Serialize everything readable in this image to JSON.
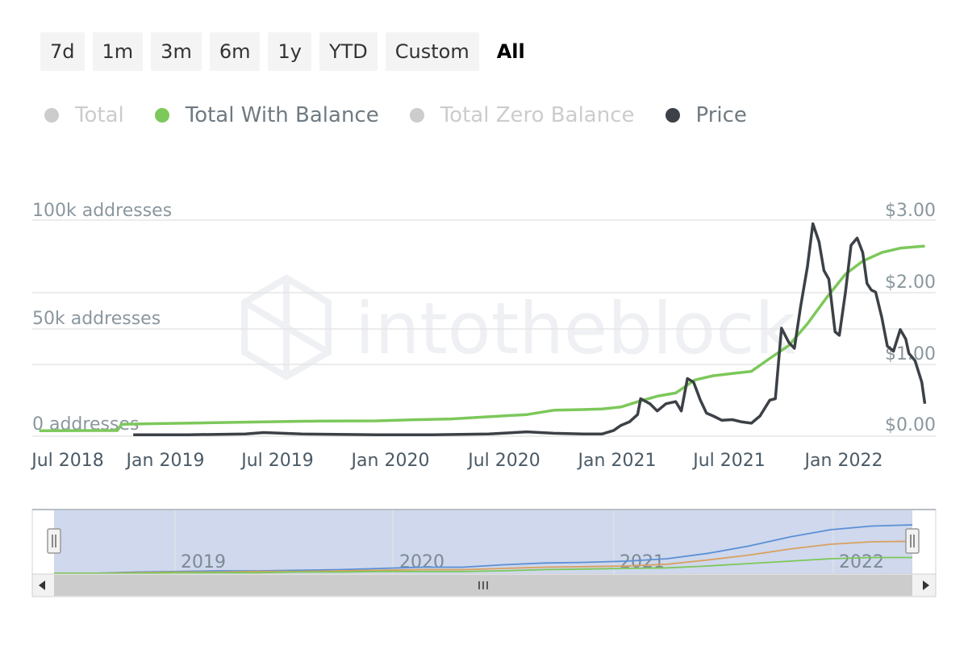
{
  "range_buttons": [
    "7d",
    "1m",
    "3m",
    "6m",
    "1y",
    "YTD",
    "Custom",
    "All"
  ],
  "active_range": "All",
  "legend": [
    {
      "label": "Total",
      "active": false,
      "color": "#cccccc"
    },
    {
      "label": "Total With Balance",
      "active": true,
      "color": "#7cc85a"
    },
    {
      "label": "Total Zero Balance",
      "active": false,
      "color": "#cccccc"
    },
    {
      "label": "Price",
      "active": true,
      "color": "#3c4147"
    }
  ],
  "watermark": "intotheblock",
  "chart_data": {
    "type": "line",
    "x_tick_labels": [
      "Jul 2018",
      "Jan 2019",
      "Jul 2019",
      "Jan 2020",
      "Jul 2020",
      "Jan 2021",
      "Jul 2021",
      "Jan 2022"
    ],
    "y_left_labels": [
      "100k addresses",
      "50k addresses",
      "0 addresses"
    ],
    "y_right_labels": [
      "$3.00",
      "$2.00",
      "$1.00",
      "$0.00"
    ],
    "y_left_range": [
      0,
      100000
    ],
    "y_right_range": [
      0,
      3
    ],
    "series": [
      {
        "name": "Total With Balance",
        "color": "#7cc85a",
        "axis": "left",
        "points": [
          [
            "2018-07-01",
            2500
          ],
          [
            "2018-10-01",
            2600
          ],
          [
            "2018-11-05",
            2600
          ],
          [
            "2018-11-12",
            5500
          ],
          [
            "2019-01-01",
            5800
          ],
          [
            "2019-04-01",
            6200
          ],
          [
            "2019-07-01",
            6600
          ],
          [
            "2019-10-01",
            7000
          ],
          [
            "2020-01-01",
            7100
          ],
          [
            "2020-03-01",
            7600
          ],
          [
            "2020-05-01",
            8000
          ],
          [
            "2020-07-01",
            9000
          ],
          [
            "2020-09-01",
            10000
          ],
          [
            "2020-10-15",
            12000
          ],
          [
            "2020-12-01",
            12300
          ],
          [
            "2021-01-01",
            12600
          ],
          [
            "2021-02-01",
            13500
          ],
          [
            "2021-03-01",
            16000
          ],
          [
            "2021-04-01",
            18500
          ],
          [
            "2021-05-01",
            20000
          ],
          [
            "2021-06-01",
            26000
          ],
          [
            "2021-07-01",
            28000
          ],
          [
            "2021-08-01",
            29000
          ],
          [
            "2021-09-01",
            30000
          ],
          [
            "2021-10-01",
            36000
          ],
          [
            "2021-11-01",
            42000
          ],
          [
            "2021-12-01",
            52000
          ],
          [
            "2022-01-01",
            64000
          ],
          [
            "2022-02-01",
            75000
          ],
          [
            "2022-03-01",
            81000
          ],
          [
            "2022-04-01",
            85000
          ],
          [
            "2022-05-01",
            87000
          ],
          [
            "2022-06-10",
            88000
          ]
        ]
      },
      {
        "name": "Price",
        "color": "#3c4147",
        "axis": "right",
        "points": [
          [
            "2018-12-01",
            0.02
          ],
          [
            "2019-03-01",
            0.02
          ],
          [
            "2019-06-01",
            0.03
          ],
          [
            "2019-07-01",
            0.05
          ],
          [
            "2019-09-01",
            0.03
          ],
          [
            "2020-01-01",
            0.02
          ],
          [
            "2020-04-01",
            0.02
          ],
          [
            "2020-07-01",
            0.03
          ],
          [
            "2020-09-01",
            0.06
          ],
          [
            "2020-10-15",
            0.04
          ],
          [
            "2020-12-01",
            0.03
          ],
          [
            "2021-01-01",
            0.03
          ],
          [
            "2021-01-20",
            0.08
          ],
          [
            "2021-02-01",
            0.15
          ],
          [
            "2021-02-15",
            0.2
          ],
          [
            "2021-02-28",
            0.3
          ],
          [
            "2021-03-05",
            0.52
          ],
          [
            "2021-03-20",
            0.45
          ],
          [
            "2021-04-01",
            0.35
          ],
          [
            "2021-04-15",
            0.45
          ],
          [
            "2021-05-01",
            0.48
          ],
          [
            "2021-05-10",
            0.35
          ],
          [
            "2021-05-20",
            0.8
          ],
          [
            "2021-05-30",
            0.75
          ],
          [
            "2021-06-10",
            0.5
          ],
          [
            "2021-06-20",
            0.32
          ],
          [
            "2021-07-01",
            0.28
          ],
          [
            "2021-07-15",
            0.22
          ],
          [
            "2021-08-01",
            0.23
          ],
          [
            "2021-08-15",
            0.2
          ],
          [
            "2021-09-01",
            0.18
          ],
          [
            "2021-09-15",
            0.28
          ],
          [
            "2021-10-01",
            0.5
          ],
          [
            "2021-10-10",
            0.52
          ],
          [
            "2021-10-20",
            1.5
          ],
          [
            "2021-11-01",
            1.3
          ],
          [
            "2021-11-10",
            1.22
          ],
          [
            "2021-11-20",
            1.8
          ],
          [
            "2021-12-01",
            2.35
          ],
          [
            "2021-12-10",
            2.95
          ],
          [
            "2021-12-20",
            2.7
          ],
          [
            "2021-12-28",
            2.3
          ],
          [
            "2022-01-05",
            2.18
          ],
          [
            "2022-01-15",
            1.45
          ],
          [
            "2022-01-22",
            1.4
          ],
          [
            "2022-02-01",
            2.0
          ],
          [
            "2022-02-10",
            2.65
          ],
          [
            "2022-02-20",
            2.75
          ],
          [
            "2022-03-01",
            2.55
          ],
          [
            "2022-03-08",
            2.12
          ],
          [
            "2022-03-15",
            2.03
          ],
          [
            "2022-03-22",
            2.0
          ],
          [
            "2022-04-01",
            1.65
          ],
          [
            "2022-04-10",
            1.25
          ],
          [
            "2022-04-20",
            1.18
          ],
          [
            "2022-05-01",
            1.48
          ],
          [
            "2022-05-10",
            1.35
          ],
          [
            "2022-05-15",
            1.15
          ],
          [
            "2022-05-25",
            1.05
          ],
          [
            "2022-06-05",
            0.75
          ],
          [
            "2022-06-10",
            0.45
          ]
        ]
      }
    ],
    "grid": true,
    "legend_position": "top-left"
  },
  "navigator": {
    "year_labels": [
      "2019",
      "2020",
      "2021",
      "2022"
    ],
    "series": [
      {
        "color": "#5b8fd6",
        "values": [
          0.0,
          0.0,
          0.02,
          0.03,
          0.04,
          0.04,
          0.05,
          0.06,
          0.08,
          0.1,
          0.1,
          0.14,
          0.17,
          0.18,
          0.2,
          0.24,
          0.33,
          0.45,
          0.6,
          0.72,
          0.78,
          0.8
        ]
      },
      {
        "color": "#d8a060",
        "values": [
          0.0,
          0.0,
          0.01,
          0.02,
          0.02,
          0.03,
          0.03,
          0.04,
          0.05,
          0.06,
          0.06,
          0.08,
          0.1,
          0.11,
          0.12,
          0.15,
          0.22,
          0.3,
          0.4,
          0.48,
          0.52,
          0.53
        ]
      },
      {
        "color": "#7cc85a",
        "values": [
          0.0,
          0.0,
          0.0,
          0.01,
          0.01,
          0.01,
          0.02,
          0.02,
          0.03,
          0.03,
          0.03,
          0.04,
          0.06,
          0.07,
          0.08,
          0.09,
          0.12,
          0.16,
          0.2,
          0.24,
          0.26,
          0.26
        ]
      }
    ]
  }
}
